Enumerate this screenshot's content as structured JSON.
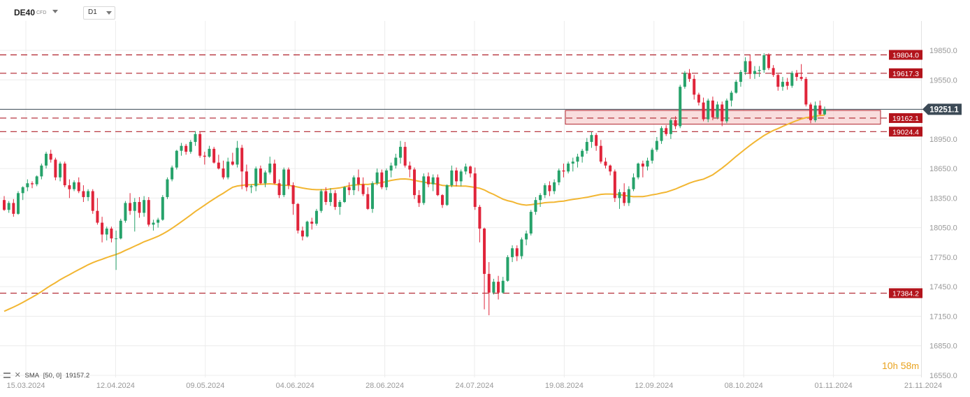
{
  "header": {
    "symbol": "DE40",
    "instrument_type": "CFD",
    "timeframe": "D1"
  },
  "indicator_legend": {
    "name": "SMA",
    "params": "[50, 0]",
    "value": "19157.2"
  },
  "countdown": {
    "hours": "10",
    "h_unit": "h",
    "minutes": "58",
    "m_unit": "m"
  },
  "colors": {
    "bull": "#26a26a",
    "bear": "#e0243a",
    "sma": "#f2b632",
    "level_line": "#b0222c",
    "level_label_bg": "#b3141c",
    "price_line": "#3c4a56",
    "price_label_bg": "#3c4a56",
    "zone_fill": "#f7d2d2",
    "zone_stroke": "#b0222c",
    "grid": "#ececec",
    "axis_text": "#999999"
  },
  "chart_data": {
    "type": "candlestick",
    "title": "",
    "y_ticks": [
      16550,
      16850,
      17150,
      17450,
      17750,
      18050,
      18350,
      18650,
      18950,
      19250,
      19550,
      19850
    ],
    "y_tick_labels": [
      "16550.0",
      "16850.0",
      "17150.0",
      "17450.0",
      "17750.0",
      "18050.0",
      "18350.0",
      "18650.0",
      "18950.0",
      "19250.0",
      "19550.0",
      "19850.0"
    ],
    "ylim": [
      16550,
      19980
    ],
    "x_tick_labels": [
      "15.03.2024",
      "12.04.2024",
      "09.05.2024",
      "04.06.2024",
      "28.06.2024",
      "24.07.2024",
      "19.08.2024",
      "12.09.2024",
      "08.10.2024",
      "01.11.2024",
      "21.11.2024"
    ],
    "grid": true,
    "current_price": 19251.1,
    "current_price_label": "19251.1",
    "levels": [
      {
        "value": 19804.0,
        "label": "19804.0"
      },
      {
        "value": 19617.3,
        "label": "19617.3"
      },
      {
        "value": 19162.1,
        "label": "19162.1"
      },
      {
        "value": 19024.4,
        "label": "19024.4"
      },
      {
        "value": 17384.2,
        "label": "17384.2"
      }
    ],
    "zone": {
      "low": 19100,
      "high": 19240
    },
    "sma": {
      "name": "SMA",
      "period": 50,
      "value": 19157.2
    },
    "candles_ohlc": [
      [
        18330,
        18370,
        18220,
        18230
      ],
      [
        18230,
        18320,
        18200,
        18300
      ],
      [
        18300,
        18340,
        18160,
        18190
      ],
      [
        18190,
        18420,
        18180,
        18400
      ],
      [
        18400,
        18470,
        18330,
        18460
      ],
      [
        18460,
        18540,
        18420,
        18500
      ],
      [
        18500,
        18520,
        18450,
        18490
      ],
      [
        18490,
        18580,
        18470,
        18570
      ],
      [
        18570,
        18700,
        18540,
        18680
      ],
      [
        18680,
        18820,
        18650,
        18800
      ],
      [
        18800,
        18840,
        18710,
        18740
      ],
      [
        18740,
        18760,
        18530,
        18560
      ],
      [
        18560,
        18720,
        18520,
        18700
      ],
      [
        18700,
        18720,
        18460,
        18480
      ],
      [
        18480,
        18540,
        18350,
        18440
      ],
      [
        18440,
        18530,
        18420,
        18510
      ],
      [
        18510,
        18560,
        18400,
        18420
      ],
      [
        18420,
        18480,
        18310,
        18360
      ],
      [
        18360,
        18440,
        18320,
        18420
      ],
      [
        18420,
        18440,
        18190,
        18220
      ],
      [
        18220,
        18350,
        18080,
        18100
      ],
      [
        18100,
        18160,
        17900,
        17980
      ],
      [
        17980,
        18060,
        17920,
        18040
      ],
      [
        18040,
        18060,
        17900,
        17940
      ],
      [
        17940,
        18020,
        17620,
        17940
      ],
      [
        17940,
        18140,
        17930,
        18120
      ],
      [
        18120,
        18320,
        18100,
        18300
      ],
      [
        18300,
        18400,
        18180,
        18220
      ],
      [
        18220,
        18350,
        18010,
        18310
      ],
      [
        18310,
        18360,
        18150,
        18200
      ],
      [
        18200,
        18370,
        18160,
        18330
      ],
      [
        18330,
        18360,
        18060,
        18080
      ],
      [
        18080,
        18130,
        18020,
        18100
      ],
      [
        18100,
        18150,
        18050,
        18130
      ],
      [
        18130,
        18380,
        18120,
        18360
      ],
      [
        18360,
        18560,
        18340,
        18540
      ],
      [
        18540,
        18680,
        18520,
        18660
      ],
      [
        18660,
        18840,
        18640,
        18830
      ],
      [
        18830,
        18910,
        18780,
        18880
      ],
      [
        18880,
        18900,
        18790,
        18820
      ],
      [
        18820,
        18940,
        18800,
        18920
      ],
      [
        18920,
        19030,
        18880,
        19000
      ],
      [
        19000,
        19020,
        18760,
        18780
      ],
      [
        18780,
        18820,
        18690,
        18770
      ],
      [
        18770,
        18880,
        18760,
        18850
      ],
      [
        18850,
        18870,
        18700,
        18710
      ],
      [
        18710,
        18790,
        18640,
        18650
      ],
      [
        18650,
        18730,
        18540,
        18560
      ],
      [
        18560,
        18760,
        18540,
        18720
      ],
      [
        18720,
        18810,
        18680,
        18690
      ],
      [
        18690,
        18930,
        18660,
        18860
      ],
      [
        18860,
        18890,
        18440,
        18620
      ],
      [
        18620,
        18690,
        18420,
        18460
      ],
      [
        18460,
        18490,
        18400,
        18470
      ],
      [
        18470,
        18670,
        18420,
        18650
      ],
      [
        18650,
        18680,
        18490,
        18500
      ],
      [
        18500,
        18630,
        18460,
        18610
      ],
      [
        18610,
        18770,
        18590,
        18700
      ],
      [
        18700,
        18740,
        18490,
        18500
      ],
      [
        18500,
        18540,
        18350,
        18380
      ],
      [
        18380,
        18660,
        18360,
        18640
      ],
      [
        18640,
        18660,
        18440,
        18480
      ],
      [
        18480,
        18510,
        18180,
        18290
      ],
      [
        18290,
        18300,
        17990,
        18020
      ],
      [
        18020,
        18060,
        17920,
        17960
      ],
      [
        17960,
        18120,
        17950,
        18110
      ],
      [
        18110,
        18150,
        18030,
        18090
      ],
      [
        18090,
        18240,
        18070,
        18220
      ],
      [
        18220,
        18440,
        18200,
        18420
      ],
      [
        18420,
        18460,
        18280,
        18310
      ],
      [
        18310,
        18450,
        18270,
        18400
      ],
      [
        18400,
        18430,
        18230,
        18260
      ],
      [
        18260,
        18330,
        18180,
        18310
      ],
      [
        18310,
        18470,
        18300,
        18460
      ],
      [
        18460,
        18510,
        18380,
        18430
      ],
      [
        18430,
        18580,
        18380,
        18560
      ],
      [
        18560,
        18640,
        18420,
        18490
      ],
      [
        18490,
        18560,
        18370,
        18390
      ],
      [
        18390,
        18460,
        18230,
        18240
      ],
      [
        18240,
        18520,
        18200,
        18500
      ],
      [
        18500,
        18650,
        18480,
        18610
      ],
      [
        18610,
        18640,
        18440,
        18460
      ],
      [
        18460,
        18650,
        18430,
        18630
      ],
      [
        18630,
        18710,
        18560,
        18680
      ],
      [
        18680,
        18800,
        18650,
        18760
      ],
      [
        18760,
        18930,
        18700,
        18870
      ],
      [
        18870,
        18920,
        18660,
        18680
      ],
      [
        18680,
        18720,
        18560,
        18640
      ],
      [
        18640,
        18660,
        18340,
        18380
      ],
      [
        18380,
        18430,
        18260,
        18300
      ],
      [
        18300,
        18600,
        18280,
        18570
      ],
      [
        18570,
        18610,
        18460,
        18490
      ],
      [
        18490,
        18590,
        18420,
        18560
      ],
      [
        18560,
        18590,
        18370,
        18380
      ],
      [
        18380,
        18390,
        18250,
        18280
      ],
      [
        18280,
        18490,
        18270,
        18480
      ],
      [
        18480,
        18680,
        18460,
        18630
      ],
      [
        18630,
        18660,
        18470,
        18520
      ],
      [
        18520,
        18640,
        18470,
        18620
      ],
      [
        18620,
        18700,
        18590,
        18670
      ],
      [
        18670,
        18680,
        18560,
        18600
      ],
      [
        18600,
        18660,
        18230,
        18260
      ],
      [
        18260,
        18280,
        17900,
        18040
      ],
      [
        18040,
        18050,
        17220,
        17580
      ],
      [
        17580,
        17700,
        17160,
        17390
      ],
      [
        17390,
        17530,
        17370,
        17500
      ],
      [
        17500,
        17560,
        17320,
        17390
      ],
      [
        17390,
        17550,
        17380,
        17510
      ],
      [
        17510,
        17770,
        17500,
        17750
      ],
      [
        17750,
        17870,
        17700,
        17840
      ],
      [
        17840,
        17870,
        17710,
        17760
      ],
      [
        17760,
        17950,
        17730,
        17930
      ],
      [
        17930,
        18020,
        17870,
        17990
      ],
      [
        17990,
        18230,
        17970,
        18210
      ],
      [
        18210,
        18360,
        18180,
        18330
      ],
      [
        18330,
        18400,
        18260,
        18380
      ],
      [
        18380,
        18500,
        18350,
        18480
      ],
      [
        18480,
        18520,
        18370,
        18420
      ],
      [
        18420,
        18540,
        18390,
        18510
      ],
      [
        18510,
        18650,
        18480,
        18630
      ],
      [
        18630,
        18700,
        18560,
        18620
      ],
      [
        18620,
        18720,
        18600,
        18700
      ],
      [
        18700,
        18760,
        18620,
        18720
      ],
      [
        18720,
        18800,
        18660,
        18770
      ],
      [
        18770,
        18850,
        18710,
        18830
      ],
      [
        18830,
        18960,
        18800,
        18920
      ],
      [
        18920,
        19020,
        18860,
        18990
      ],
      [
        18990,
        19010,
        18830,
        18880
      ],
      [
        18880,
        18940,
        18700,
        18720
      ],
      [
        18720,
        18760,
        18650,
        18680
      ],
      [
        18680,
        18690,
        18580,
        18620
      ],
      [
        18620,
        18640,
        18310,
        18350
      ],
      [
        18350,
        18440,
        18240,
        18410
      ],
      [
        18410,
        18500,
        18270,
        18300
      ],
      [
        18300,
        18470,
        18270,
        18440
      ],
      [
        18440,
        18600,
        18420,
        18560
      ],
      [
        18560,
        18710,
        18540,
        18700
      ],
      [
        18700,
        18730,
        18560,
        18670
      ],
      [
        18670,
        18760,
        18630,
        18730
      ],
      [
        18730,
        18860,
        18700,
        18840
      ],
      [
        18840,
        18970,
        18820,
        18930
      ],
      [
        18930,
        19080,
        18900,
        19060
      ],
      [
        19060,
        19090,
        18980,
        19000
      ],
      [
        19000,
        19160,
        18950,
        19140
      ],
      [
        19140,
        19180,
        19050,
        19080
      ],
      [
        19080,
        19500,
        19060,
        19480
      ],
      [
        19480,
        19640,
        19460,
        19620
      ],
      [
        19620,
        19660,
        19530,
        19560
      ],
      [
        19560,
        19600,
        19350,
        19400
      ],
      [
        19400,
        19420,
        19290,
        19320
      ],
      [
        19320,
        19370,
        19130,
        19150
      ],
      [
        19150,
        19360,
        19120,
        19340
      ],
      [
        19340,
        19380,
        19140,
        19170
      ],
      [
        19170,
        19330,
        19150,
        19300
      ],
      [
        19300,
        19330,
        19080,
        19130
      ],
      [
        19130,
        19360,
        19110,
        19340
      ],
      [
        19340,
        19440,
        19280,
        19420
      ],
      [
        19420,
        19550,
        19410,
        19530
      ],
      [
        19530,
        19650,
        19480,
        19630
      ],
      [
        19630,
        19780,
        19600,
        19740
      ],
      [
        19740,
        19800,
        19560,
        19610
      ],
      [
        19610,
        19690,
        19560,
        19640
      ],
      [
        19640,
        19690,
        19580,
        19650
      ],
      [
        19650,
        19820,
        19620,
        19800
      ],
      [
        19800,
        19820,
        19650,
        19670
      ],
      [
        19670,
        19700,
        19580,
        19600
      ],
      [
        19600,
        19610,
        19440,
        19480
      ],
      [
        19480,
        19580,
        19440,
        19530
      ],
      [
        19530,
        19570,
        19450,
        19490
      ],
      [
        19490,
        19640,
        19470,
        19620
      ],
      [
        19620,
        19650,
        19540,
        19580
      ],
      [
        19580,
        19710,
        19540,
        19560
      ],
      [
        19560,
        19580,
        19280,
        19300
      ],
      [
        19300,
        19320,
        19110,
        19140
      ],
      [
        19140,
        19330,
        19120,
        19290
      ],
      [
        19290,
        19340,
        19190,
        19200
      ],
      [
        19200,
        19280,
        19190,
        19251.1
      ]
    ]
  }
}
